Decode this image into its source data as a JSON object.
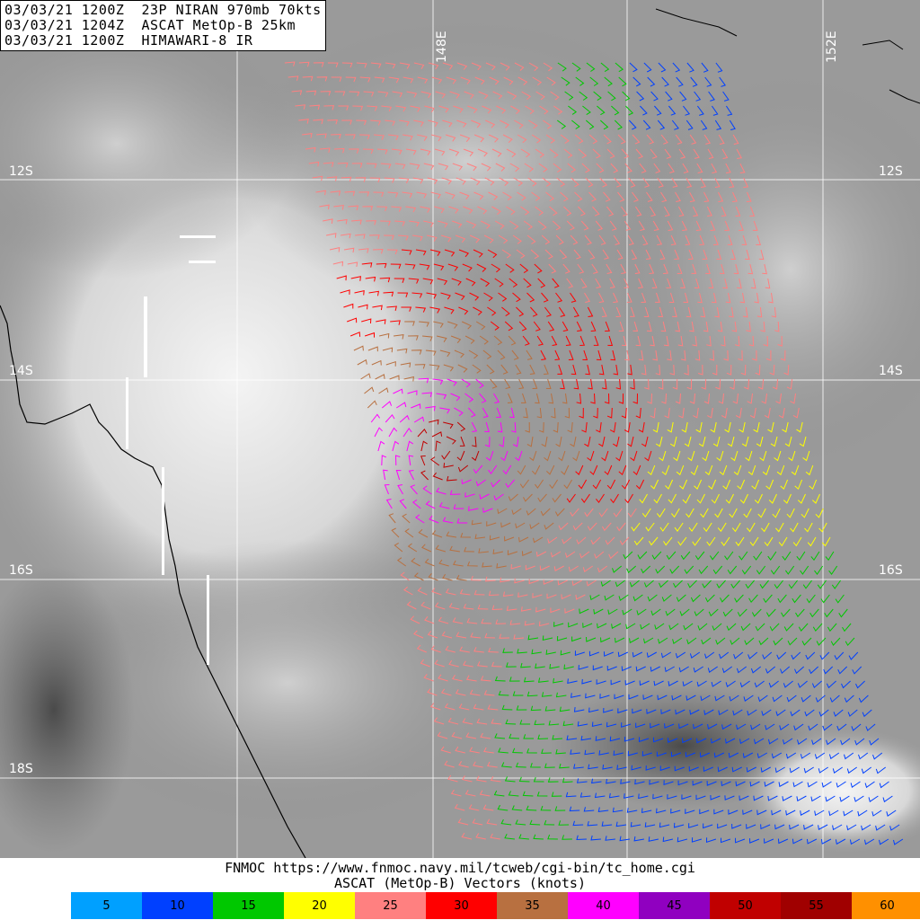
{
  "header": {
    "line1": "03/03/21 1200Z  23P NIRAN 970mb 70kts",
    "line2": "03/03/21 1204Z  ASCAT MetOp-B 25km",
    "line3": "03/03/21 1200Z  HIMAWARI-8 IR"
  },
  "grid": {
    "lat_labels": [
      "12S",
      "14S",
      "16S",
      "18S"
    ],
    "lon_labels": [
      "148E",
      "152E"
    ]
  },
  "footer": {
    "credit_line1": "FNMOC https://www.fnmoc.navy.mil/tcweb/cgi-bin/tc_home.cgi",
    "credit_line2": "ASCAT (MetOp-B) Vectors (knots)"
  },
  "legend": [
    {
      "label": "5",
      "color": "#00a0ff"
    },
    {
      "label": "10",
      "color": "#0040ff"
    },
    {
      "label": "15",
      "color": "#00c800"
    },
    {
      "label": "20",
      "color": "#ffff00"
    },
    {
      "label": "25",
      "color": "#ff8080"
    },
    {
      "label": "30",
      "color": "#ff0000"
    },
    {
      "label": "35",
      "color": "#b87040"
    },
    {
      "label": "40",
      "color": "#ff00ff"
    },
    {
      "label": "45",
      "color": "#9000c0"
    },
    {
      "label": "50",
      "color": "#c00000"
    },
    {
      "label": "55",
      "color": "#a00000"
    },
    {
      "label": "60",
      "color": "#ff9000"
    }
  ]
}
